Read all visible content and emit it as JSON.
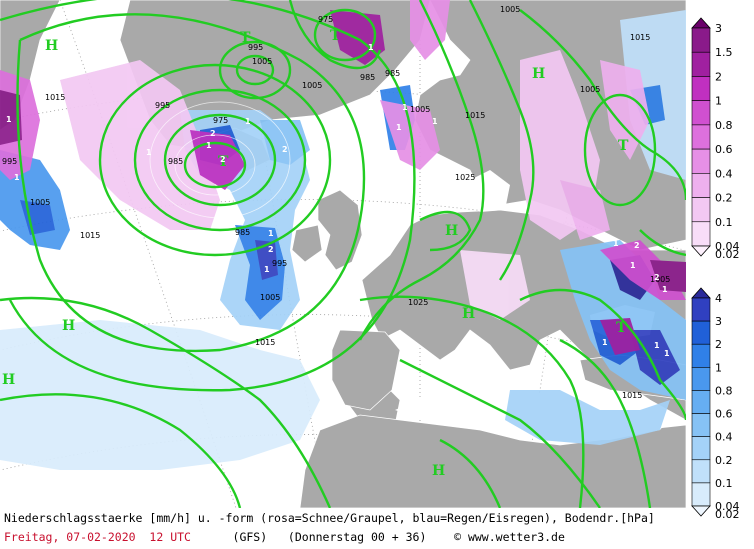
{
  "footer": {
    "description": "Niederschlagsstaerke [mm/h] u. -form (rosa=Schnee/Graupel, blau=Regen/Eisregen), Bodendr.[hPa]",
    "date": "Freitag, 07-02-2020",
    "time": "12 UTC",
    "model": "(GFS)",
    "forecast": "(Donnerstag 00 + 36)",
    "copyright": "© www.wetter3.de"
  },
  "legend_snow": {
    "labels": [
      "3",
      "1.5",
      "2",
      "1",
      "0.8",
      "0.6",
      "0.4",
      "0.2",
      "0.1",
      "0.04",
      "0.02"
    ],
    "colors": [
      "#6a006a",
      "#8a1a8a",
      "#a020a0",
      "#c030c0",
      "#d050d0",
      "#dd70dd",
      "#e690e6",
      "#eeb0ee",
      "#f3c8f3",
      "#f8ddf8",
      "#fcf0fc"
    ]
  },
  "legend_rain": {
    "labels": [
      "4",
      "3",
      "2",
      "1",
      "0.8",
      "0.6",
      "0.4",
      "0.2",
      "0.1",
      "0.04",
      "0.02"
    ],
    "colors": [
      "#2a2a9a",
      "#3040c0",
      "#2060d8",
      "#3080e8",
      "#4a98ee",
      "#66aef2",
      "#86c2f5",
      "#a4d2f8",
      "#c0e0fa",
      "#d8ecfc",
      "#eef6fe"
    ]
  },
  "map": {
    "isobar_labels": [
      "975",
      "995",
      "985",
      "995",
      "1005",
      "1015",
      "1005",
      "1025",
      "1015",
      "1005",
      "1015",
      "985",
      "1005",
      "1015",
      "1025",
      "1005",
      "1015",
      "1005",
      "1015",
      "985",
      "1005",
      "995",
      "975",
      "985",
      "995",
      "1005"
    ],
    "highs": [
      "H",
      "H",
      "H",
      "H",
      "H",
      "H",
      "H"
    ],
    "lows": [
      "T",
      "T",
      "T",
      "T",
      "T"
    ],
    "precip_values": [
      "1",
      "1",
      "2",
      "2",
      "1",
      "1",
      "2",
      "1",
      "1",
      "2",
      "1",
      "1",
      "1",
      "1",
      "2",
      "1",
      "1",
      "2",
      "1",
      "1",
      "1",
      "1",
      "1"
    ]
  }
}
